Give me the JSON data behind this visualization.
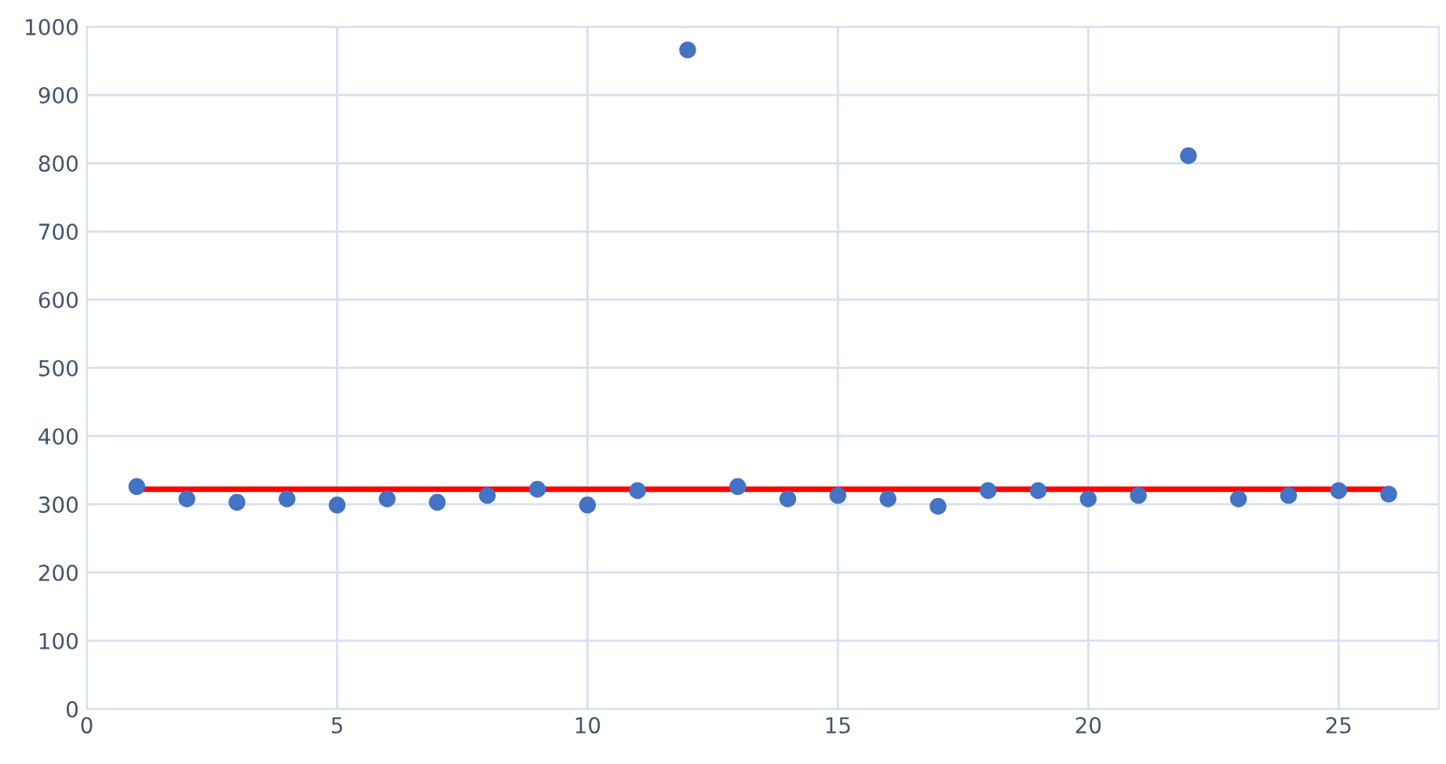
{
  "chart_data": {
    "type": "scatter",
    "x": [
      1,
      2,
      3,
      4,
      5,
      6,
      7,
      8,
      9,
      10,
      11,
      12,
      13,
      14,
      15,
      16,
      17,
      18,
      19,
      20,
      21,
      22,
      23,
      24,
      25,
      26
    ],
    "series": [
      {
        "color": "#4472c4",
        "marker": "circle",
        "values": [
          326,
          308,
          303,
          308,
          299,
          308,
          303,
          313,
          322,
          299,
          320,
          966,
          326,
          308,
          313,
          308,
          297,
          320,
          320,
          308,
          313,
          811,
          308,
          313,
          320,
          315
        ]
      },
      {
        "type": "line",
        "marker": "none",
        "color": "#ff0000",
        "x": [
          1,
          26
        ],
        "values": [
          322,
          322
        ]
      }
    ],
    "xlim": [
      0,
      27
    ],
    "xticks": [
      0,
      5,
      10,
      15,
      20,
      25
    ],
    "ylim": [
      0,
      1000
    ],
    "yticks": [
      0,
      100,
      200,
      300,
      400,
      500,
      600,
      700,
      800,
      900,
      1000
    ],
    "grid": true
  }
}
